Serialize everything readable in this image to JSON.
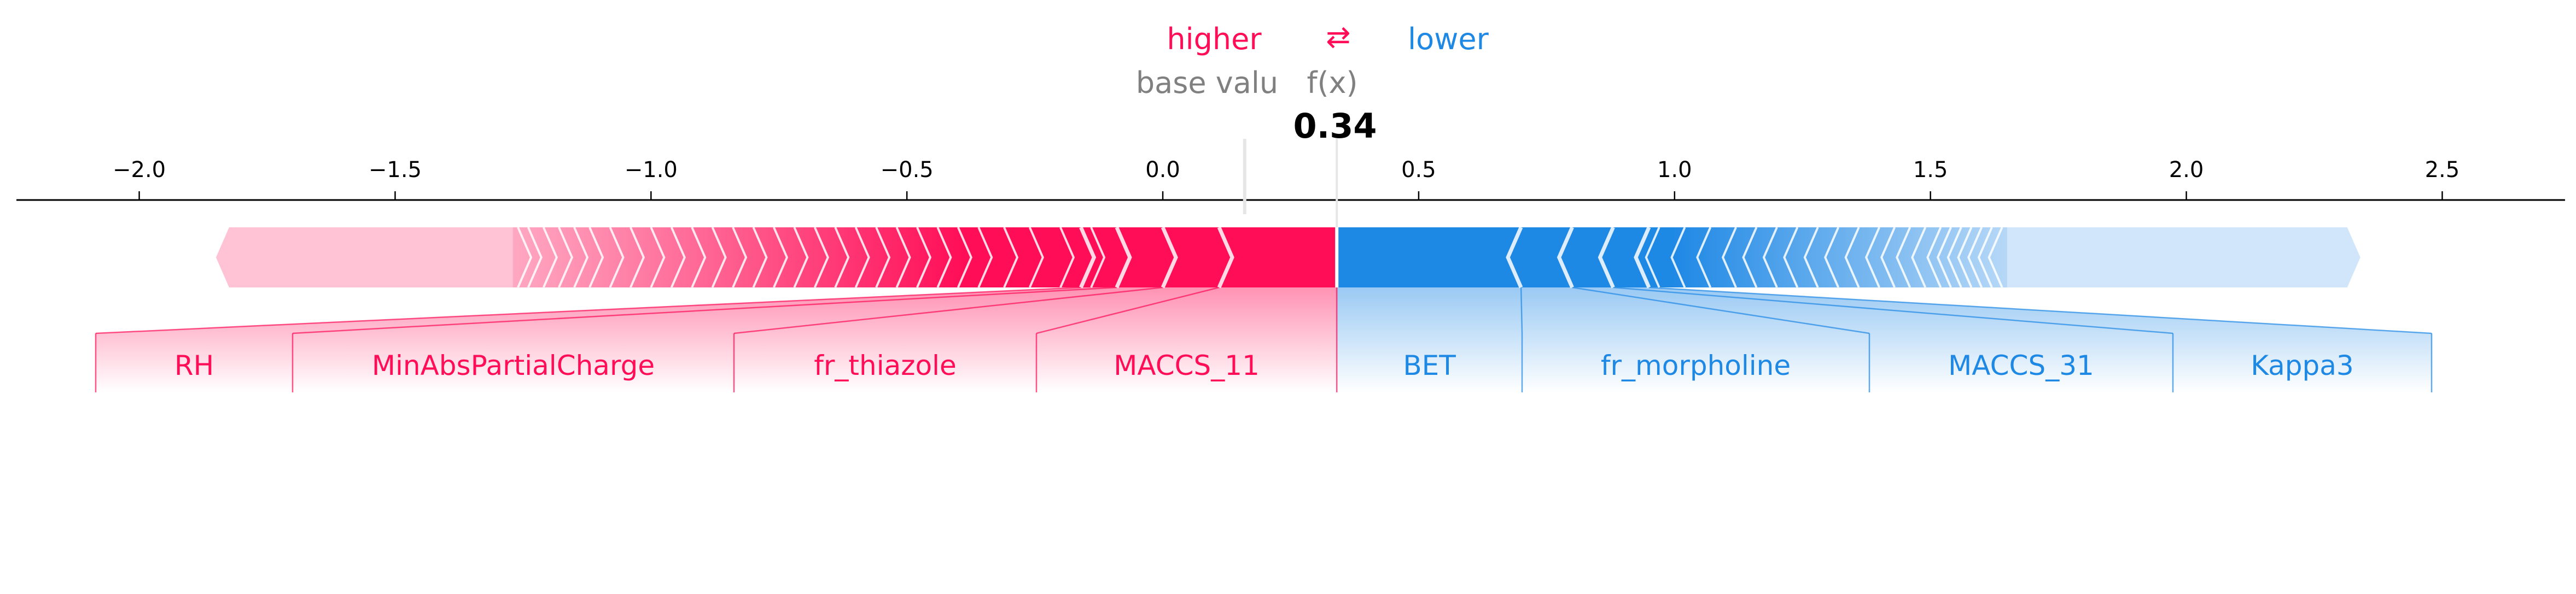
{
  "legend": {
    "higher": "higher",
    "arrows": "⇄",
    "lower": "lower",
    "base_value_label": "base valu",
    "fx_label": "f(x)"
  },
  "colors": {
    "positive": "#ff0d57",
    "positive_light": "#ffc3d5",
    "negative": "#1e88e5",
    "negative_light": "#d1e6fa",
    "label_grey": "#808080"
  },
  "chart_data": {
    "type": "force",
    "output_value": 0.34,
    "output_value_label": "0.34",
    "base_value": 0.16,
    "xlim": [
      -2.24,
      2.74
    ],
    "ticks": [
      -2.0,
      -1.5,
      -1.0,
      -0.5,
      0.0,
      0.5,
      1.0,
      1.5,
      2.0,
      2.5
    ],
    "tick_labels": [
      "−2.0",
      "−1.5",
      "−1.0",
      "−0.5",
      "0.0",
      "0.5",
      "1.0",
      "1.5",
      "2.0",
      "2.5"
    ],
    "positive_range": [
      -1.85,
      0.34
    ],
    "negative_range": [
      0.34,
      2.34
    ],
    "positive_features": [
      {
        "name": "MACCS_11",
        "start": 0.34,
        "end": 0.11
      },
      {
        "name": "fr_thiazole",
        "start": 0.11,
        "end": 0.0
      },
      {
        "name": "MinAbsPartialCharge",
        "start": 0.0,
        "end": -0.09
      },
      {
        "name": "RH",
        "start": -0.09,
        "end": -0.16
      }
    ],
    "negative_features": [
      {
        "name": "BET",
        "start": 0.34,
        "end": 0.7
      },
      {
        "name": "fr_morpholine",
        "start": 0.7,
        "end": 0.8
      },
      {
        "name": "MACCS_31",
        "start": 0.8,
        "end": 0.88
      },
      {
        "name": "Kappa3",
        "start": 0.88,
        "end": 0.95
      }
    ],
    "positive_tail_edges": [
      -0.14,
      -0.2,
      -0.26,
      -0.31,
      -0.36,
      -0.4,
      -0.44,
      -0.48,
      -0.52,
      -0.56,
      -0.6,
      -0.64,
      -0.68,
      -0.72,
      -0.76,
      -0.8,
      -0.84,
      -0.88,
      -0.92,
      -0.96,
      -1.0,
      -1.04,
      -1.08,
      -1.12,
      -1.15,
      -1.18,
      -1.21,
      -1.24,
      -1.26
    ],
    "negative_tail_edges": [
      0.97,
      1.02,
      1.07,
      1.12,
      1.16,
      1.2,
      1.24,
      1.28,
      1.32,
      1.36,
      1.4,
      1.43,
      1.46,
      1.49,
      1.52,
      1.54,
      1.56,
      1.58,
      1.6,
      1.62,
      1.64
    ]
  }
}
